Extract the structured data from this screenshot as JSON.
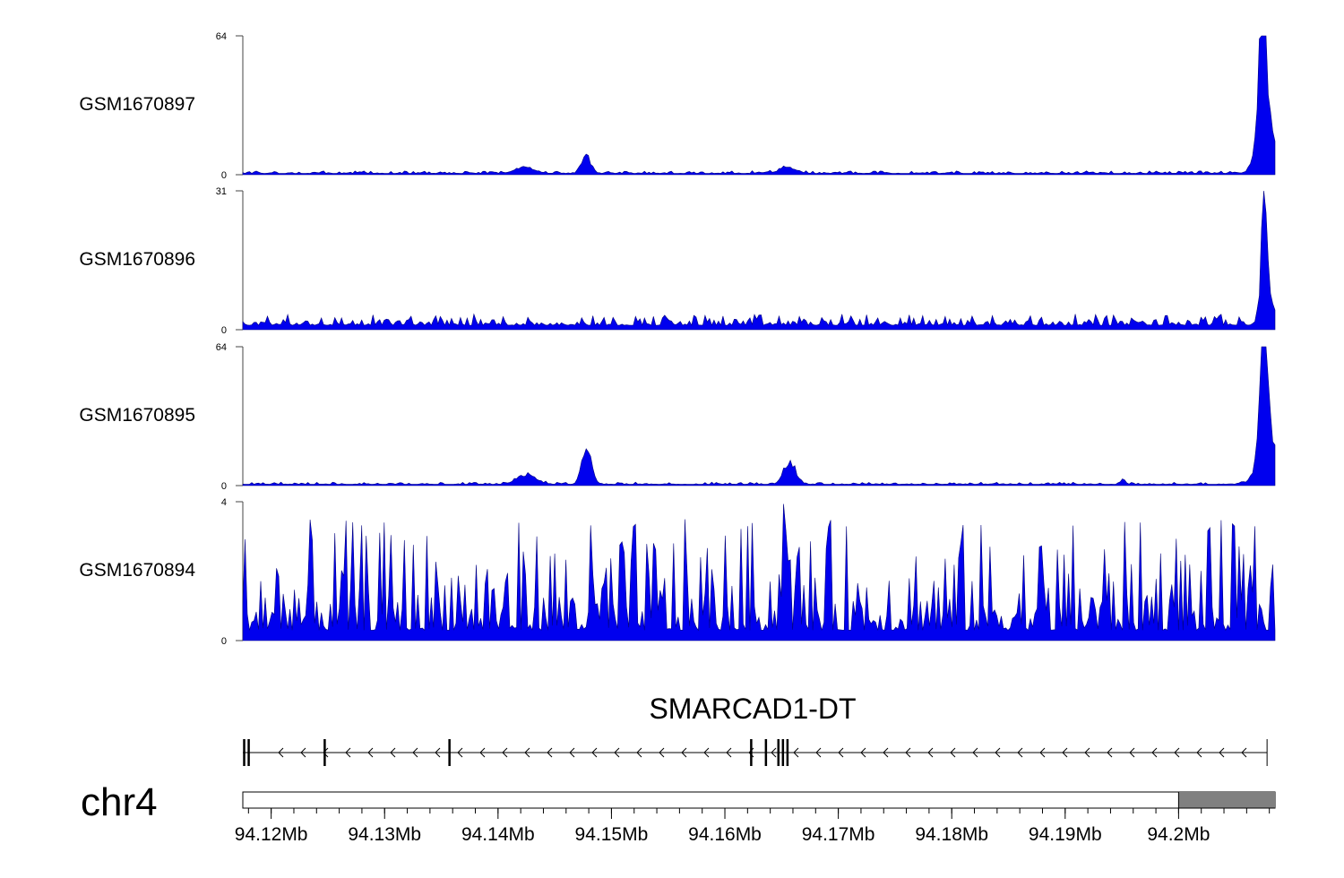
{
  "chart_data": {
    "type": "area",
    "title": "",
    "chromosome": "chr4",
    "gene": {
      "name": "SMARCAD1-DT",
      "strand": "-",
      "start_mb": 94.1175,
      "end_mb": 94.2078,
      "exons_mb": [
        94.1176,
        94.118,
        94.1247,
        94.1357,
        94.1623,
        94.1636,
        94.1647,
        94.1651,
        94.1655
      ]
    },
    "x_axis": {
      "range_mb": [
        94.1175,
        94.2085
      ],
      "tick_labels": [
        "94.12Mb",
        "94.13Mb",
        "94.14Mb",
        "94.15Mb",
        "94.16Mb",
        "94.17Mb",
        "94.18Mb",
        "94.19Mb",
        "94.2Mb"
      ],
      "tick_values_mb": [
        94.12,
        94.13,
        94.14,
        94.15,
        94.16,
        94.17,
        94.18,
        94.19,
        94.2
      ],
      "ideogram_band_start_mb": 94.2
    },
    "series": [
      {
        "name": "GSM1670897",
        "ylim": [
          0,
          64
        ],
        "ytick_labels": [
          "64",
          "0"
        ],
        "baseline": 0.6,
        "noise": 1.2,
        "peaks": [
          {
            "pos_mb": 94.1424,
            "height": 3,
            "width": 0.0008
          },
          {
            "pos_mb": 94.1478,
            "height": 8,
            "width": 0.0004
          },
          {
            "pos_mb": 94.1655,
            "height": 3,
            "width": 0.0007
          },
          {
            "pos_mb": 94.2074,
            "height": 64,
            "width": 0.0003
          },
          {
            "pos_mb": 94.2077,
            "height": 28,
            "width": 0.0007
          }
        ]
      },
      {
        "name": "GSM1670896",
        "ylim": [
          0,
          31
        ],
        "ytick_labels": [
          "31",
          "0"
        ],
        "baseline": 1.0,
        "noise": 2.5,
        "peaks": [
          {
            "pos_mb": 94.2075,
            "height": 31,
            "width": 0.0002
          },
          {
            "pos_mb": 94.2078,
            "height": 8,
            "width": 0.0005
          }
        ]
      },
      {
        "name": "GSM1670895",
        "ylim": [
          0,
          64
        ],
        "ytick_labels": [
          "64",
          "0"
        ],
        "baseline": 0.6,
        "noise": 1.0,
        "peaks": [
          {
            "pos_mb": 94.1425,
            "height": 5,
            "width": 0.0008
          },
          {
            "pos_mb": 94.1478,
            "height": 20,
            "width": 0.0004
          },
          {
            "pos_mb": 94.1657,
            "height": 11,
            "width": 0.0005
          },
          {
            "pos_mb": 94.1951,
            "height": 3,
            "width": 0.0002
          },
          {
            "pos_mb": 94.2075,
            "height": 64,
            "width": 0.0003
          },
          {
            "pos_mb": 94.2079,
            "height": 26,
            "width": 0.0008
          }
        ]
      },
      {
        "name": "GSM1670894",
        "ylim": [
          0,
          4
        ],
        "ytick_labels": [
          "4",
          "0"
        ],
        "baseline": 0.3,
        "noise": 3.2,
        "peaks": [
          {
            "pos_mb": 94.1653,
            "height": 4,
            "width": 0.0002
          }
        ]
      }
    ],
    "colors": {
      "fill": "#0000ee",
      "line": "#000080",
      "axis": "#444444",
      "ideogram_band": "#808080"
    }
  }
}
